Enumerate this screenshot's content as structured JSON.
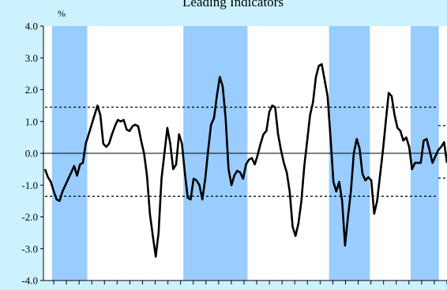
{
  "chart_data": {
    "type": "line",
    "title": "Leading Indicators",
    "ylabel": "%",
    "xlabel": "",
    "ylim": [
      -4.0,
      4.0
    ],
    "yticks": [
      4.0,
      3.0,
      2.0,
      1.0,
      0.0,
      -1.0,
      -2.0,
      -3.0,
      -4.0
    ],
    "ytick_labels": [
      "4.0",
      "3.0",
      "2.0",
      "1.0",
      "0.0",
      "-1.0",
      "-2.0",
      "-3.0",
      "-4.0"
    ],
    "x_index_range": [
      0,
      100
    ],
    "grid": false,
    "colors": {
      "background": "#ccf2ff",
      "plot_area": "#ffffff",
      "shading": "#99ccff",
      "line": "#000000"
    },
    "shaded_periods": [
      [
        2.4,
        14.5
      ],
      [
        47.5,
        69.5
      ],
      [
        97.5,
        111.5
      ],
      [
        125.5,
        135.2
      ]
    ],
    "threshold_lines": [
      {
        "from": 0,
        "to": 135,
        "value": 1.45
      },
      {
        "from": 0,
        "to": 135,
        "value": -1.35
      },
      {
        "from": 135,
        "to": 181,
        "value": 0.87
      },
      {
        "from": 135,
        "to": 181,
        "value": -0.78
      }
    ],
    "series": [
      {
        "points": [
          [
            0,
            -0.5
          ],
          [
            1,
            -0.75
          ],
          [
            2,
            -0.9
          ],
          [
            3,
            -1.2
          ],
          [
            4,
            -1.45
          ],
          [
            5,
            -1.5
          ],
          [
            6,
            -1.2
          ],
          [
            7,
            -1.0
          ],
          [
            8,
            -0.8
          ],
          [
            9,
            -0.6
          ],
          [
            10,
            -0.4
          ],
          [
            11,
            -0.7
          ],
          [
            12,
            -0.35
          ],
          [
            13,
            -0.3
          ],
          [
            14,
            0.3
          ],
          [
            15,
            0.6
          ],
          [
            16,
            0.9
          ],
          [
            17,
            1.2
          ],
          [
            18,
            1.5
          ],
          [
            19,
            1.2
          ],
          [
            20,
            0.3
          ],
          [
            21,
            0.2
          ],
          [
            22,
            0.3
          ],
          [
            23,
            0.6
          ],
          [
            24,
            0.85
          ],
          [
            25,
            1.05
          ],
          [
            26,
            1.0
          ],
          [
            27,
            1.05
          ],
          [
            28,
            0.75
          ],
          [
            29,
            0.7
          ],
          [
            30,
            0.85
          ],
          [
            31,
            0.9
          ],
          [
            32,
            0.85
          ],
          [
            33,
            0.4
          ],
          [
            34,
            0.0
          ],
          [
            35,
            -0.7
          ],
          [
            36,
            -1.9
          ],
          [
            37,
            -2.6
          ],
          [
            38,
            -3.25
          ],
          [
            39,
            -2.5
          ],
          [
            40,
            -0.8
          ],
          [
            41,
            0.0
          ],
          [
            42,
            0.8
          ],
          [
            43,
            0.3
          ],
          [
            44,
            -0.5
          ],
          [
            45,
            -0.35
          ],
          [
            46,
            0.6
          ],
          [
            47,
            0.3
          ],
          [
            48,
            -0.6
          ],
          [
            49,
            -1.4
          ],
          [
            50,
            -1.45
          ],
          [
            51,
            -0.8
          ],
          [
            52,
            -0.85
          ],
          [
            53,
            -1.0
          ],
          [
            54,
            -1.45
          ],
          [
            55,
            -0.8
          ],
          [
            56,
            0.1
          ],
          [
            57,
            0.9
          ],
          [
            58,
            1.1
          ],
          [
            59,
            1.8
          ],
          [
            60,
            2.4
          ],
          [
            61,
            2.1
          ],
          [
            62,
            1.1
          ],
          [
            63,
            -0.5
          ],
          [
            64,
            -1.0
          ],
          [
            65,
            -0.7
          ],
          [
            66,
            -0.55
          ],
          [
            67,
            -0.6
          ],
          [
            68,
            -0.8
          ],
          [
            69,
            -0.35
          ],
          [
            70,
            -0.2
          ],
          [
            71,
            -0.15
          ],
          [
            72,
            -0.35
          ],
          [
            73,
            -0.05
          ],
          [
            74,
            0.3
          ],
          [
            75,
            0.6
          ],
          [
            76,
            0.7
          ],
          [
            77,
            1.3
          ],
          [
            78,
            1.5
          ],
          [
            79,
            1.45
          ],
          [
            80,
            0.6
          ],
          [
            81,
            0.1
          ],
          [
            82,
            -0.3
          ],
          [
            83,
            -0.6
          ],
          [
            84,
            -1.2
          ],
          [
            85,
            -2.3
          ],
          [
            86,
            -2.6
          ],
          [
            87,
            -2.2
          ],
          [
            88,
            -1.5
          ],
          [
            89,
            -0.4
          ],
          [
            90,
            0.4
          ],
          [
            91,
            1.2
          ],
          [
            92,
            1.6
          ],
          [
            93,
            2.4
          ],
          [
            94,
            2.75
          ],
          [
            95,
            2.8
          ],
          [
            96,
            2.3
          ],
          [
            97,
            1.8
          ],
          [
            98,
            0.5
          ],
          [
            99,
            -0.9
          ],
          [
            100,
            -1.2
          ],
          [
            101,
            -0.9
          ],
          [
            102,
            -1.5
          ],
          [
            103,
            -2.9
          ],
          [
            104,
            -2.0
          ],
          [
            105,
            -1.2
          ],
          [
            106,
            0.0
          ],
          [
            107,
            0.45
          ],
          [
            108,
            0.15
          ],
          [
            109,
            -0.65
          ],
          [
            110,
            -0.85
          ],
          [
            111,
            -0.75
          ],
          [
            112,
            -0.85
          ],
          [
            113,
            -1.9
          ],
          [
            114,
            -1.5
          ],
          [
            115,
            -0.7
          ],
          [
            116,
            0.1
          ],
          [
            117,
            1.0
          ],
          [
            118,
            1.9
          ],
          [
            119,
            1.8
          ],
          [
            120,
            1.2
          ],
          [
            121,
            0.8
          ],
          [
            122,
            0.7
          ],
          [
            123,
            0.4
          ],
          [
            124,
            0.5
          ],
          [
            125,
            0.2
          ],
          [
            126,
            -0.5
          ],
          [
            127,
            -0.3
          ],
          [
            128,
            -0.3
          ],
          [
            129,
            -0.3
          ],
          [
            130,
            0.4
          ],
          [
            131,
            0.45
          ],
          [
            132,
            0.1
          ],
          [
            133,
            -0.3
          ],
          [
            134,
            -0.1
          ],
          [
            135,
            0.1
          ],
          [
            136,
            0.2
          ],
          [
            137,
            0.35
          ],
          [
            138,
            -0.3
          ]
        ]
      }
    ]
  }
}
